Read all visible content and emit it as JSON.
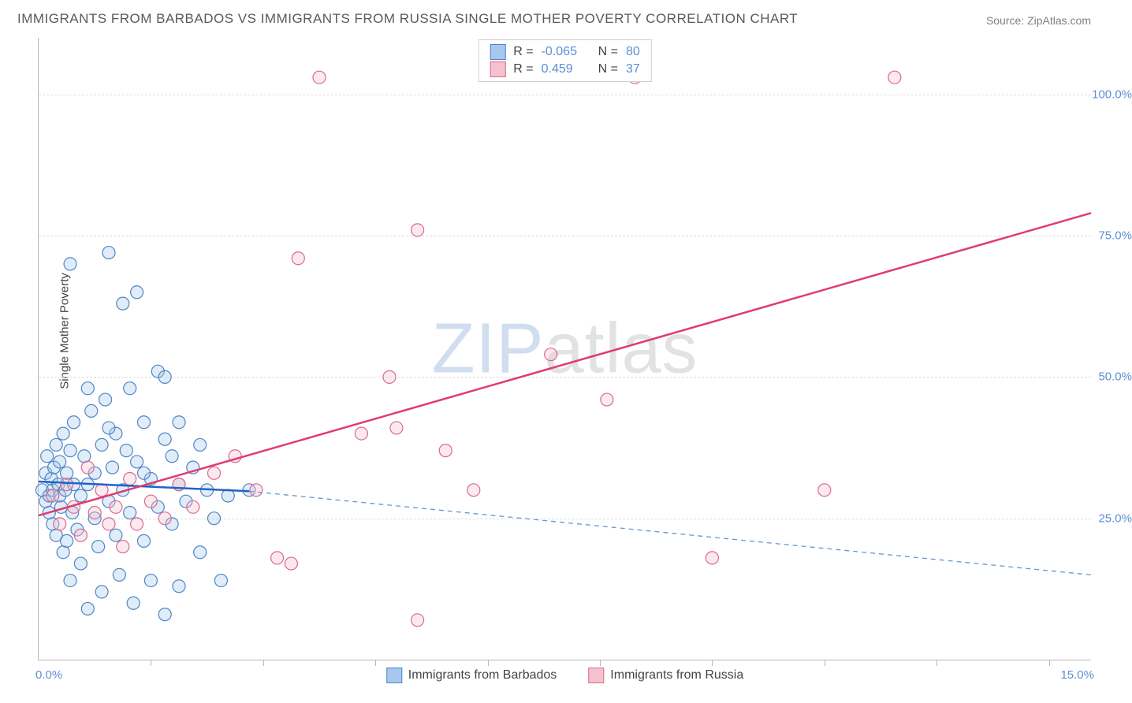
{
  "title": "IMMIGRANTS FROM BARBADOS VS IMMIGRANTS FROM RUSSIA SINGLE MOTHER POVERTY CORRELATION CHART",
  "source_label": "Source: ",
  "source_value": "ZipAtlas.com",
  "ylabel": "Single Mother Poverty",
  "watermark_a": "ZIP",
  "watermark_b": "atlas",
  "chart": {
    "type": "scatter",
    "background_color": "#ffffff",
    "grid_color": "#dcdcdc",
    "axis_color": "#b8b8b8",
    "value_text_color": "#5b8fd6",
    "x_min": 0.0,
    "x_max": 15.0,
    "y_min": 0.0,
    "y_max": 110.0,
    "x_tick_label_left": "0.0%",
    "x_tick_label_right": "15.0%",
    "x_minor_ticks": [
      1.6,
      3.2,
      4.8,
      6.4,
      8.0,
      9.6,
      11.2,
      12.8,
      14.4
    ],
    "y_gridlines": [
      {
        "value": 25.0,
        "label": "25.0%"
      },
      {
        "value": 50.0,
        "label": "50.0%"
      },
      {
        "value": 75.0,
        "label": "75.0%"
      },
      {
        "value": 100.0,
        "label": "100.0%"
      }
    ],
    "marker_radius": 8,
    "marker_fill_opacity": 0.35,
    "marker_stroke_width": 1.2,
    "line_width_solid": 2.5,
    "line_width_dashed": 1.3,
    "dash_pattern": "6 5"
  },
  "series": [
    {
      "key": "barbados",
      "label": "Immigrants from Barbados",
      "color_fill": "#a7c8ec",
      "color_stroke": "#4f86c6",
      "R": "-0.065",
      "N": "80",
      "trend": {
        "x1": 0.0,
        "y1": 31.5,
        "x2": 3.0,
        "y2": 29.8,
        "style": "solid",
        "color": "#1e64c8"
      },
      "trend_ext": {
        "x1": 3.0,
        "y1": 29.8,
        "x2": 15.0,
        "y2": 15.0,
        "style": "dashed",
        "color": "#6a95c9"
      },
      "points": [
        [
          0.05,
          30
        ],
        [
          0.1,
          28
        ],
        [
          0.1,
          33
        ],
        [
          0.12,
          36
        ],
        [
          0.15,
          29
        ],
        [
          0.15,
          26
        ],
        [
          0.18,
          32
        ],
        [
          0.2,
          30
        ],
        [
          0.2,
          24
        ],
        [
          0.22,
          34
        ],
        [
          0.25,
          38
        ],
        [
          0.25,
          22
        ],
        [
          0.28,
          31
        ],
        [
          0.3,
          29
        ],
        [
          0.3,
          35
        ],
        [
          0.32,
          27
        ],
        [
          0.35,
          40
        ],
        [
          0.35,
          19
        ],
        [
          0.38,
          30
        ],
        [
          0.4,
          33
        ],
        [
          0.4,
          21
        ],
        [
          0.45,
          37
        ],
        [
          0.45,
          14
        ],
        [
          0.48,
          26
        ],
        [
          0.5,
          31
        ],
        [
          0.5,
          42
        ],
        [
          0.55,
          23
        ],
        [
          0.6,
          29
        ],
        [
          0.6,
          17
        ],
        [
          0.65,
          36
        ],
        [
          0.7,
          31
        ],
        [
          0.7,
          9
        ],
        [
          0.75,
          44
        ],
        [
          0.8,
          25
        ],
        [
          0.8,
          33
        ],
        [
          0.85,
          20
        ],
        [
          0.9,
          38
        ],
        [
          0.9,
          12
        ],
        [
          0.95,
          46
        ],
        [
          1.0,
          28
        ],
        [
          1.0,
          72
        ],
        [
          1.05,
          34
        ],
        [
          1.1,
          22
        ],
        [
          1.1,
          40
        ],
        [
          1.15,
          15
        ],
        [
          1.2,
          30
        ],
        [
          1.2,
          63
        ],
        [
          1.3,
          48
        ],
        [
          1.3,
          26
        ],
        [
          1.35,
          10
        ],
        [
          1.4,
          35
        ],
        [
          1.4,
          65
        ],
        [
          1.5,
          42
        ],
        [
          1.5,
          21
        ],
        [
          1.6,
          32
        ],
        [
          1.6,
          14
        ],
        [
          1.7,
          27
        ],
        [
          1.7,
          51
        ],
        [
          1.8,
          39
        ],
        [
          1.8,
          8
        ],
        [
          1.9,
          24
        ],
        [
          1.9,
          36
        ],
        [
          2.0,
          31
        ],
        [
          2.0,
          13
        ],
        [
          2.1,
          28
        ],
        [
          2.2,
          34
        ],
        [
          2.3,
          19
        ],
        [
          2.4,
          30
        ],
        [
          2.5,
          25
        ],
        [
          2.6,
          14
        ],
        [
          0.45,
          70
        ],
        [
          0.7,
          48
        ],
        [
          1.0,
          41
        ],
        [
          1.25,
          37
        ],
        [
          1.5,
          33
        ],
        [
          1.8,
          50
        ],
        [
          2.0,
          42
        ],
        [
          2.3,
          38
        ],
        [
          2.7,
          29
        ],
        [
          3.0,
          30
        ]
      ]
    },
    {
      "key": "russia",
      "label": "Immigrants from Russia",
      "color_fill": "#f4c1cf",
      "color_stroke": "#d96a8f",
      "R": "0.459",
      "N": "37",
      "trend": {
        "x1": 0.0,
        "y1": 25.5,
        "x2": 15.0,
        "y2": 79.0,
        "style": "solid",
        "color": "#e23a6e"
      },
      "points": [
        [
          0.2,
          29
        ],
        [
          0.3,
          24
        ],
        [
          0.4,
          31
        ],
        [
          0.5,
          27
        ],
        [
          0.6,
          22
        ],
        [
          0.7,
          34
        ],
        [
          0.8,
          26
        ],
        [
          0.9,
          30
        ],
        [
          1.0,
          24
        ],
        [
          1.1,
          27
        ],
        [
          1.2,
          20
        ],
        [
          1.3,
          32
        ],
        [
          1.4,
          24
        ],
        [
          1.6,
          28
        ],
        [
          1.8,
          25
        ],
        [
          2.0,
          31
        ],
        [
          2.2,
          27
        ],
        [
          2.5,
          33
        ],
        [
          2.8,
          36
        ],
        [
          3.1,
          30
        ],
        [
          3.4,
          18
        ],
        [
          3.6,
          17
        ],
        [
          3.7,
          71
        ],
        [
          4.0,
          103
        ],
        [
          4.6,
          40
        ],
        [
          5.0,
          50
        ],
        [
          5.1,
          41
        ],
        [
          5.4,
          7
        ],
        [
          5.8,
          37
        ],
        [
          6.2,
          30
        ],
        [
          7.3,
          54
        ],
        [
          8.1,
          46
        ],
        [
          8.5,
          103
        ],
        [
          9.6,
          18
        ],
        [
          11.2,
          30
        ],
        [
          12.2,
          103
        ],
        [
          5.4,
          76
        ]
      ]
    }
  ],
  "legend_top": {
    "r_label": "R =",
    "n_label": "N ="
  }
}
